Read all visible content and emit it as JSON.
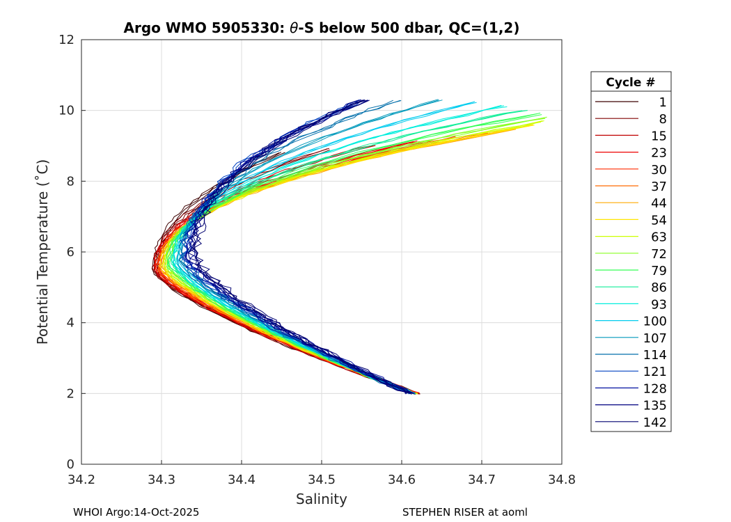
{
  "chart_data": {
    "type": "line",
    "title_prefix": "Argo WMO 5905330: ",
    "title_theta": "θ",
    "title_suffix": "-S below 500 dbar,  QC=(1,2)",
    "xlabel": "Salinity",
    "ylabel": "Potential Temperature (˚C)",
    "xlim": [
      34.2,
      34.8
    ],
    "ylim": [
      0,
      12
    ],
    "xticks": [
      "34.2",
      "34.3",
      "34.4",
      "34.5",
      "34.6",
      "34.7",
      "34.8"
    ],
    "yticks": [
      "0",
      "2",
      "4",
      "6",
      "8",
      "10",
      "12"
    ],
    "grid": true,
    "legend_title": "Cycle #",
    "legend_position": "outside-right",
    "series": [
      {
        "name": "1",
        "color": "#3c0000"
      },
      {
        "name": "8",
        "color": "#800000"
      },
      {
        "name": "15",
        "color": "#c00000"
      },
      {
        "name": "23",
        "color": "#ee0000"
      },
      {
        "name": "30",
        "color": "#ff2a00"
      },
      {
        "name": "37",
        "color": "#ff6a00"
      },
      {
        "name": "44",
        "color": "#ffaa00"
      },
      {
        "name": "54",
        "color": "#ffe600"
      },
      {
        "name": "63",
        "color": "#ccff00"
      },
      {
        "name": "72",
        "color": "#88ff22"
      },
      {
        "name": "79",
        "color": "#33ff55"
      },
      {
        "name": "86",
        "color": "#11ee99"
      },
      {
        "name": "93",
        "color": "#00eedd"
      },
      {
        "name": "100",
        "color": "#00ccee"
      },
      {
        "name": "107",
        "color": "#0099bb"
      },
      {
        "name": "114",
        "color": "#006eaa"
      },
      {
        "name": "121",
        "color": "#0040c0"
      },
      {
        "name": "128",
        "color": "#0010a0"
      },
      {
        "name": "135",
        "color": "#000080"
      },
      {
        "name": "142",
        "color": "#000070"
      }
    ]
  },
  "footer": {
    "left": "WHOI Argo:14-Oct-2025",
    "right": "STEPHEN RISER at aoml"
  }
}
